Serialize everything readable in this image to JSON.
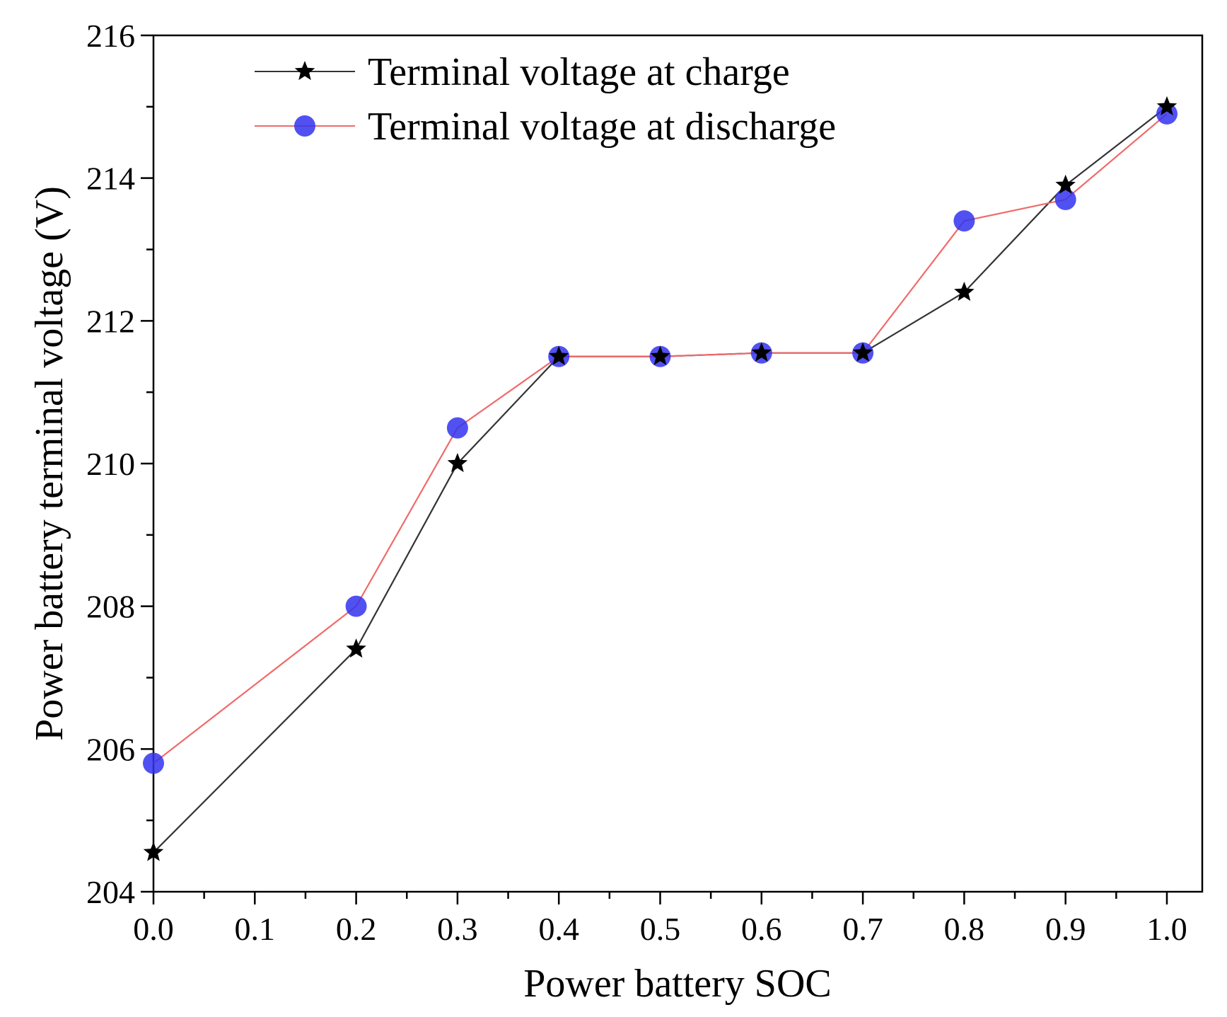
{
  "chart_data": {
    "type": "line",
    "title": "",
    "xlabel": "Power battery SOC",
    "ylabel": "Power battery terminal voltage (V)",
    "xlim": [
      0.0,
      1.0
    ],
    "ylim": [
      204,
      216
    ],
    "x_ticks": [
      "0.0",
      "0.1",
      "0.2",
      "0.3",
      "0.4",
      "0.5",
      "0.6",
      "0.7",
      "0.8",
      "0.9",
      "1.0"
    ],
    "y_ticks": [
      "204",
      "206",
      "208",
      "210",
      "212",
      "214",
      "216"
    ],
    "x_categories": [
      0.0,
      0.1,
      0.2,
      0.3,
      0.4,
      0.5,
      0.6,
      0.7,
      0.8,
      0.9,
      1.0
    ],
    "grid": false,
    "legend_position": "top-left",
    "series": [
      {
        "name": "Terminal voltage at charge",
        "marker": "star",
        "line_color": "#333333",
        "marker_color": "#000000",
        "x": [
          0.0,
          0.2,
          0.3,
          0.4,
          0.5,
          0.6,
          0.7,
          0.8,
          0.9,
          1.0
        ],
        "values": [
          204.55,
          207.4,
          210.0,
          211.5,
          211.5,
          211.55,
          211.55,
          212.4,
          213.9,
          215.0
        ]
      },
      {
        "name": "Terminal voltage at discharge",
        "marker": "circle",
        "line_color": "#f06a6a",
        "marker_color": "#3333ee",
        "x": [
          0.0,
          0.2,
          0.3,
          0.4,
          0.5,
          0.6,
          0.7,
          0.8,
          0.9,
          1.0
        ],
        "values": [
          205.8,
          208.0,
          210.5,
          211.5,
          211.5,
          211.55,
          211.55,
          213.4,
          213.7,
          214.9
        ]
      }
    ]
  }
}
